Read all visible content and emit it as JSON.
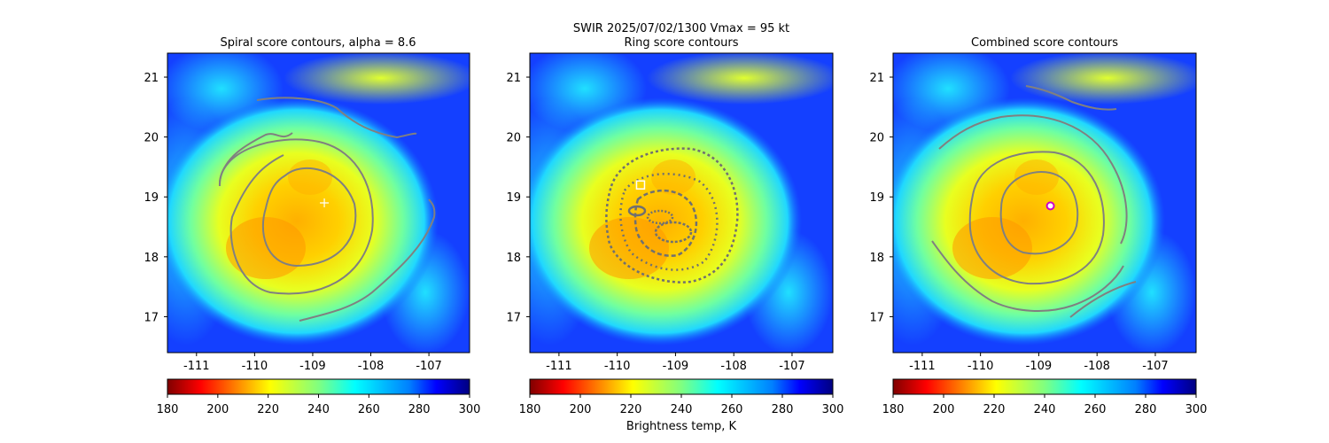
{
  "suptitle": {
    "line1": "SWIR  2025/07/02/1300    Vmax = 95 kt"
  },
  "colorbar": {
    "label": "Brightness temp, K",
    "range": [
      180,
      300
    ],
    "ticks": [
      "180",
      "200",
      "220",
      "240",
      "260",
      "280",
      "300"
    ],
    "cmap": "jet_r"
  },
  "colors": {
    "contour": "#808080",
    "plus_marker": "#ffffff",
    "square_marker": "#ffffff",
    "circle_marker": "#cc00cc"
  },
  "chart_data": [
    {
      "type": "heatmap",
      "title": "Spiral score contours, alpha =  8.6",
      "xlim": [
        -111.5,
        -106.3
      ],
      "ylim": [
        16.4,
        21.4
      ],
      "xticks": [
        "-111",
        "-110",
        "-109",
        "-108",
        "-107"
      ],
      "yticks": [
        "17",
        "18",
        "19",
        "20",
        "21"
      ],
      "marker": {
        "shape": "plus",
        "lon": -108.8,
        "lat": 18.9
      },
      "contour_levels": 3
    },
    {
      "type": "heatmap",
      "title": "Ring score contours",
      "xlim": [
        -111.5,
        -106.3
      ],
      "ylim": [
        16.4,
        21.4
      ],
      "xticks": [
        "-111",
        "-110",
        "-109",
        "-108",
        "-107"
      ],
      "yticks": [
        "17",
        "18",
        "19",
        "20",
        "21"
      ],
      "marker": {
        "shape": "square",
        "lon": -109.6,
        "lat": 19.2
      }
    },
    {
      "type": "heatmap",
      "title": "Combined score contours",
      "xlim": [
        -111.5,
        -106.3
      ],
      "ylim": [
        16.4,
        21.4
      ],
      "xticks": [
        "-111",
        "-110",
        "-109",
        "-108",
        "-107"
      ],
      "yticks": [
        "17",
        "18",
        "19",
        "20",
        "21"
      ],
      "marker": {
        "shape": "circle",
        "lon": -108.8,
        "lat": 18.85
      },
      "contour_levels": 4
    }
  ]
}
